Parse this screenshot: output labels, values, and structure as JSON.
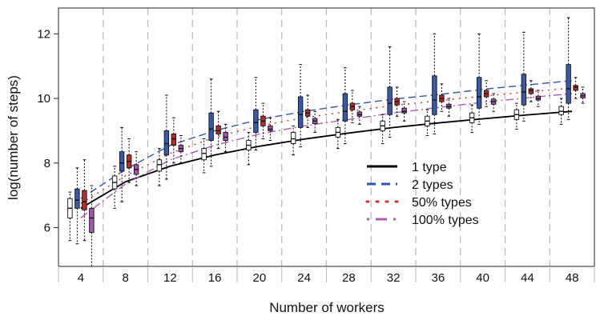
{
  "chart_data": {
    "type": "boxplot-with-lines",
    "xlabel": "Number of workers",
    "ylabel": "log(number of steps)",
    "categories": [
      4,
      8,
      12,
      16,
      20,
      24,
      28,
      32,
      36,
      40,
      44,
      48
    ],
    "ylim": [
      4.8,
      12.8
    ],
    "yticks": [
      6,
      8,
      10,
      12
    ],
    "grid": "vertical dashed separators between worker groups",
    "legend_position": "center-right",
    "series": [
      {
        "name": "1 type",
        "color": "#000000",
        "box_fill": "#ffffff",
        "line_style": "solid",
        "fit": [
          6.6,
          7.42,
          7.9,
          8.25,
          8.52,
          8.74,
          8.93,
          9.1,
          9.24,
          9.37,
          9.49,
          9.6
        ],
        "boxes": [
          {
            "q1": 6.3,
            "median": 6.6,
            "q3": 6.9,
            "wlo": 5.6,
            "whi": 7.1
          },
          {
            "q1": 7.2,
            "median": 7.4,
            "q3": 7.6,
            "wlo": 6.6,
            "whi": 7.9
          },
          {
            "q1": 7.75,
            "median": 7.95,
            "q3": 8.1,
            "wlo": 7.3,
            "whi": 8.45
          },
          {
            "q1": 8.1,
            "median": 8.3,
            "q3": 8.45,
            "wlo": 7.7,
            "whi": 8.75
          },
          {
            "q1": 8.4,
            "median": 8.55,
            "q3": 8.7,
            "wlo": 7.95,
            "whi": 8.95
          },
          {
            "q1": 8.6,
            "median": 8.75,
            "q3": 8.95,
            "wlo": 8.25,
            "whi": 9.15
          },
          {
            "q1": 8.8,
            "median": 8.95,
            "q3": 9.1,
            "wlo": 8.45,
            "whi": 9.35
          },
          {
            "q1": 9.0,
            "median": 9.15,
            "q3": 9.3,
            "wlo": 8.6,
            "whi": 9.5
          },
          {
            "q1": 9.15,
            "median": 9.3,
            "q3": 9.45,
            "wlo": 8.85,
            "whi": 9.65
          },
          {
            "q1": 9.25,
            "median": 9.4,
            "q3": 9.55,
            "wlo": 8.95,
            "whi": 9.8
          },
          {
            "q1": 9.35,
            "median": 9.5,
            "q3": 9.65,
            "wlo": 9.05,
            "whi": 9.85
          },
          {
            "q1": 9.5,
            "median": 9.6,
            "q3": 9.75,
            "wlo": 9.2,
            "whi": 10.0
          }
        ]
      },
      {
        "name": "2 types",
        "color": "#3355aa",
        "box_fill": "#3a5aa8",
        "line_style": "dashed",
        "fit": [
          6.9,
          7.8,
          8.55,
          9.0,
          9.35,
          9.6,
          9.8,
          9.98,
          10.12,
          10.28,
          10.42,
          10.55
        ],
        "boxes": [
          {
            "q1": 6.6,
            "median": 6.85,
            "q3": 7.2,
            "wlo": 5.5,
            "whi": 7.85
          },
          {
            "q1": 7.75,
            "median": 8.0,
            "q3": 8.35,
            "wlo": 6.8,
            "whi": 9.1
          },
          {
            "q1": 8.25,
            "median": 8.6,
            "q3": 9.0,
            "wlo": 7.5,
            "whi": 10.1
          },
          {
            "q1": 8.7,
            "median": 9.05,
            "q3": 9.55,
            "wlo": 7.9,
            "whi": 10.6
          },
          {
            "q1": 8.95,
            "median": 9.25,
            "q3": 9.65,
            "wlo": 8.4,
            "whi": 10.65
          },
          {
            "q1": 9.1,
            "median": 9.5,
            "q3": 10.05,
            "wlo": 8.5,
            "whi": 11.05
          },
          {
            "q1": 9.3,
            "median": 9.6,
            "q3": 10.15,
            "wlo": 8.6,
            "whi": 10.95
          },
          {
            "q1": 9.5,
            "median": 9.85,
            "q3": 10.35,
            "wlo": 8.8,
            "whi": 11.6
          },
          {
            "q1": 9.5,
            "median": 9.95,
            "q3": 10.7,
            "wlo": 8.9,
            "whi": 12.0
          },
          {
            "q1": 9.7,
            "median": 10.05,
            "q3": 10.65,
            "wlo": 9.2,
            "whi": 12.0
          },
          {
            "q1": 9.8,
            "median": 10.2,
            "q3": 10.75,
            "wlo": 9.3,
            "whi": 12.05
          },
          {
            "q1": 9.85,
            "median": 10.3,
            "q3": 11.05,
            "wlo": 9.35,
            "whi": 12.5
          }
        ]
      },
      {
        "name": "50% types",
        "color": "#cc3333",
        "box_fill": "#b82c2c",
        "line_style": "dotted",
        "fit": [
          6.75,
          7.6,
          8.3,
          8.8,
          9.15,
          9.4,
          9.6,
          9.78,
          9.93,
          10.07,
          10.2,
          10.32
        ],
        "boxes": [
          {
            "q1": 6.55,
            "median": 6.8,
            "q3": 7.15,
            "wlo": 5.6,
            "whi": 8.1
          },
          {
            "q1": 7.85,
            "median": 8.05,
            "q3": 8.25,
            "wlo": 7.4,
            "whi": 8.75
          },
          {
            "q1": 8.55,
            "median": 8.75,
            "q3": 8.9,
            "wlo": 8.0,
            "whi": 9.4
          },
          {
            "q1": 8.9,
            "median": 9.0,
            "q3": 9.15,
            "wlo": 8.45,
            "whi": 9.6
          },
          {
            "q1": 9.15,
            "median": 9.3,
            "q3": 9.45,
            "wlo": 8.75,
            "whi": 9.85
          },
          {
            "q1": 9.45,
            "median": 9.55,
            "q3": 9.65,
            "wlo": 9.1,
            "whi": 10.1
          },
          {
            "q1": 9.65,
            "median": 9.75,
            "q3": 9.85,
            "wlo": 9.25,
            "whi": 10.25
          },
          {
            "q1": 9.8,
            "median": 9.9,
            "q3": 10.0,
            "wlo": 9.45,
            "whi": 10.35
          },
          {
            "q1": 9.9,
            "median": 10.0,
            "q3": 10.1,
            "wlo": 9.6,
            "whi": 10.45
          },
          {
            "q1": 10.05,
            "median": 10.15,
            "q3": 10.25,
            "wlo": 9.75,
            "whi": 10.55
          },
          {
            "q1": 10.15,
            "median": 10.25,
            "q3": 10.3,
            "wlo": 9.9,
            "whi": 10.55
          },
          {
            "q1": 10.25,
            "median": 10.35,
            "q3": 10.4,
            "wlo": 10.0,
            "whi": 10.65
          }
        ]
      },
      {
        "name": "100% types",
        "color": "#b05bb5",
        "box_fill": "#a15aab",
        "line_style": "dashdot",
        "fit": [
          6.3,
          7.35,
          8.1,
          8.55,
          8.9,
          9.15,
          9.35,
          9.55,
          9.72,
          9.88,
          10.02,
          10.15
        ],
        "boxes": [
          {
            "q1": 5.85,
            "median": 6.3,
            "q3": 6.6,
            "wlo": 4.8,
            "whi": 7.3
          },
          {
            "q1": 7.65,
            "median": 7.8,
            "q3": 7.95,
            "wlo": 7.3,
            "whi": 8.35
          },
          {
            "q1": 8.35,
            "median": 8.45,
            "q3": 8.55,
            "wlo": 8.0,
            "whi": 8.85
          },
          {
            "q1": 8.7,
            "median": 8.8,
            "q3": 8.95,
            "wlo": 8.35,
            "whi": 9.2
          },
          {
            "q1": 9.0,
            "median": 9.05,
            "q3": 9.15,
            "wlo": 8.7,
            "whi": 9.4
          },
          {
            "q1": 9.22,
            "median": 9.3,
            "q3": 9.38,
            "wlo": 8.95,
            "whi": 9.6
          },
          {
            "q1": 9.45,
            "median": 9.5,
            "q3": 9.58,
            "wlo": 9.2,
            "whi": 9.75
          },
          {
            "q1": 9.55,
            "median": 9.6,
            "q3": 9.7,
            "wlo": 9.3,
            "whi": 9.9
          },
          {
            "q1": 9.7,
            "median": 9.75,
            "q3": 9.82,
            "wlo": 9.45,
            "whi": 10.0
          },
          {
            "q1": 9.82,
            "median": 9.9,
            "q3": 9.98,
            "wlo": 9.6,
            "whi": 10.15
          },
          {
            "q1": 9.95,
            "median": 10.0,
            "q3": 10.07,
            "wlo": 9.75,
            "whi": 10.25
          },
          {
            "q1": 10.02,
            "median": 10.08,
            "q3": 10.15,
            "wlo": 9.85,
            "whi": 10.35
          }
        ]
      }
    ]
  }
}
